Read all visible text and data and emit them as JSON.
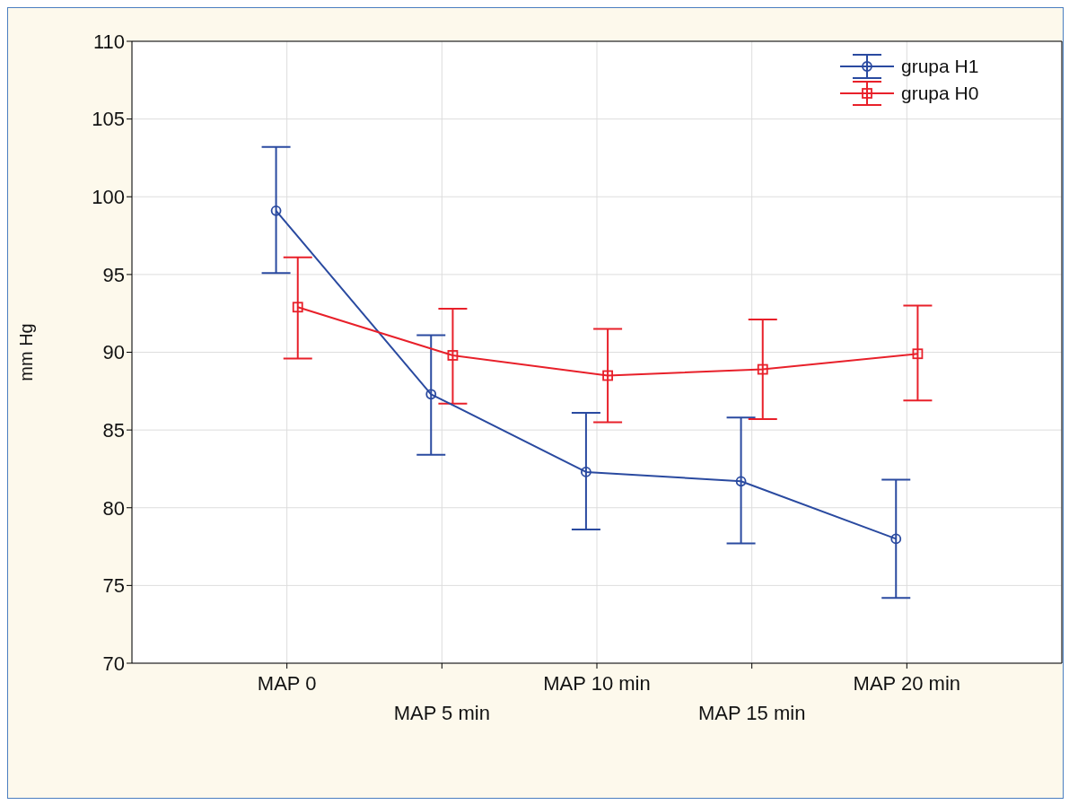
{
  "chart_data": {
    "type": "line",
    "ylabel": "mm Hg",
    "categories": [
      "MAP 0",
      "MAP 5 min",
      "MAP 10 min",
      "MAP 15 min",
      "MAP 20 min"
    ],
    "series": [
      {
        "name": "grupa H1",
        "color": "#2a4aa0",
        "marker": "circle",
        "values": [
          99.1,
          87.3,
          82.3,
          81.7,
          78.0
        ],
        "errors": [
          [
            95.1,
            103.2
          ],
          [
            83.4,
            91.1
          ],
          [
            78.6,
            86.1
          ],
          [
            77.7,
            85.8
          ],
          [
            74.2,
            81.8
          ]
        ]
      },
      {
        "name": "grupa H0",
        "color": "#e8202a",
        "marker": "square",
        "values": [
          92.9,
          89.8,
          88.5,
          88.9,
          89.9
        ],
        "errors": [
          [
            89.6,
            96.1
          ],
          [
            86.7,
            92.8
          ],
          [
            85.5,
            91.5
          ],
          [
            85.7,
            92.1
          ],
          [
            86.9,
            93.0
          ]
        ]
      }
    ],
    "ylim": [
      70,
      110
    ],
    "yticks": [
      70,
      75,
      80,
      85,
      90,
      95,
      100,
      105,
      110
    ],
    "grid": true,
    "legend": "top right"
  }
}
